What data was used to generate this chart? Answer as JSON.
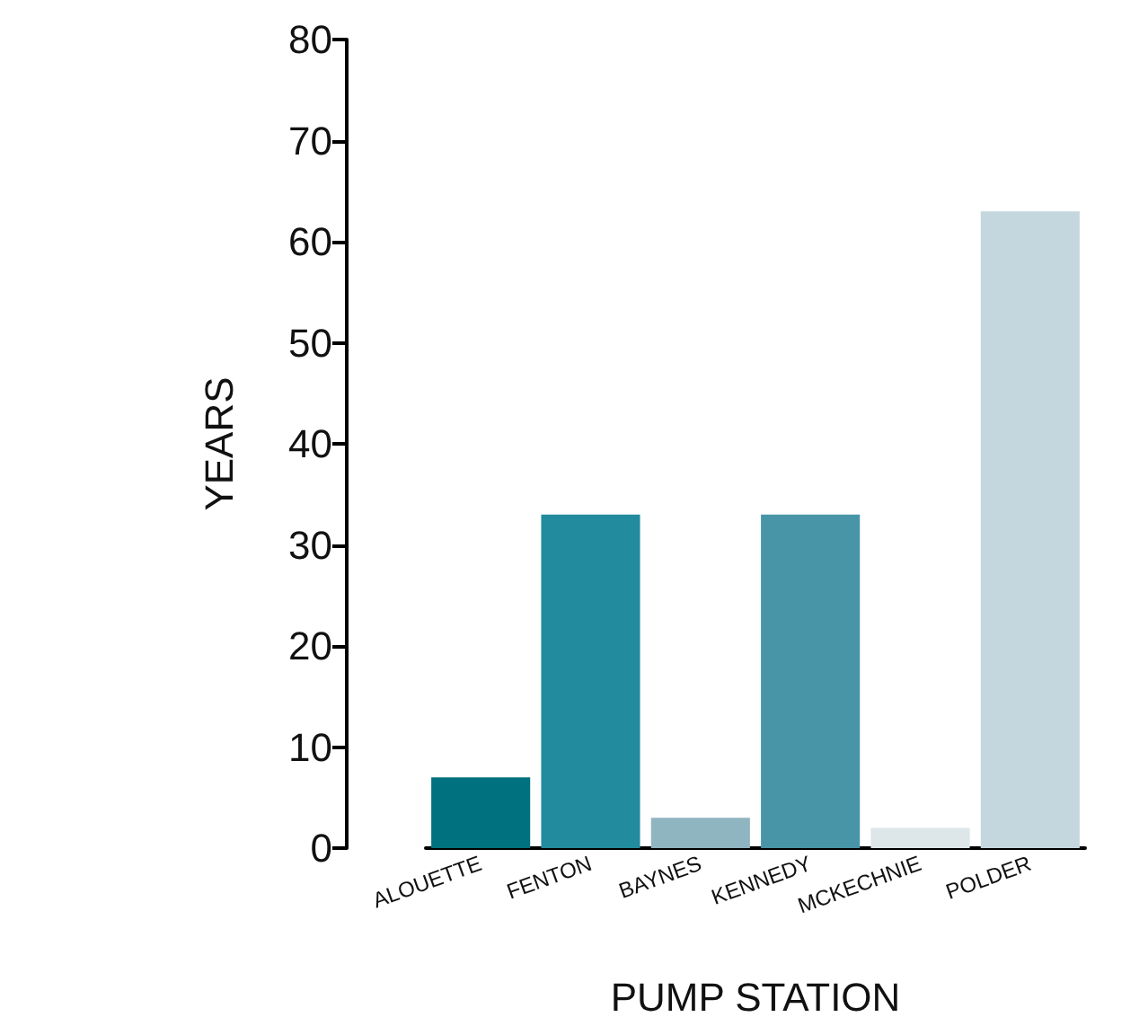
{
  "chart_data": {
    "type": "bar",
    "xlabel": "PUMP STATION",
    "ylabel": "YEARS",
    "categories": [
      "ALOUETTE",
      "FENTON",
      "BAYNES",
      "KENNEDY",
      "MCKECHNIE",
      "POLDER"
    ],
    "values": [
      7,
      33,
      3,
      33,
      2,
      63
    ],
    "colors": [
      "#00717f",
      "#228b9d",
      "#8fb5c0",
      "#4795a7",
      "#dde6e8",
      "#c5d7de"
    ],
    "ylim": [
      0,
      80
    ],
    "yticks": [
      0,
      10,
      20,
      30,
      40,
      50,
      60,
      70,
      80
    ],
    "grid": false
  }
}
